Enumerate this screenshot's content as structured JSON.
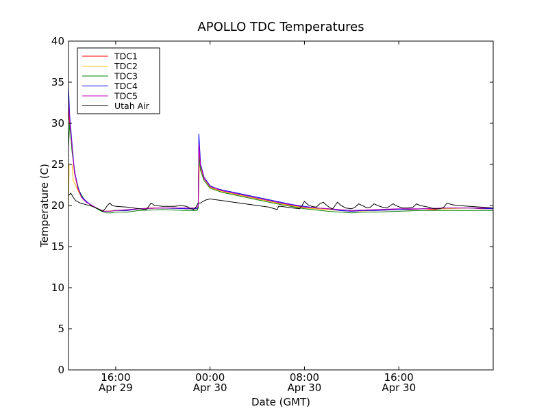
{
  "chart_data": {
    "type": "line",
    "title": "APOLLO TDC Temperatures",
    "xlabel": "Date (GMT)",
    "ylabel": "Temperature (C)",
    "ylim": [
      0,
      40
    ],
    "xlim_hours": [
      12.0,
      48.0
    ],
    "x_unit": "hours since Apr 29 00:00 GMT",
    "y_ticks": [
      {
        "value": 0,
        "label": "0"
      },
      {
        "value": 5,
        "label": "5"
      },
      {
        "value": 10,
        "label": "10"
      },
      {
        "value": 15,
        "label": "15"
      },
      {
        "value": 20,
        "label": "20"
      },
      {
        "value": 25,
        "label": "25"
      },
      {
        "value": 30,
        "label": "30"
      },
      {
        "value": 35,
        "label": "35"
      },
      {
        "value": 40,
        "label": "40"
      }
    ],
    "x_ticks": [
      {
        "value": 16,
        "time": "16:00",
        "date": "Apr 29"
      },
      {
        "value": 24,
        "time": "00:00",
        "date": "Apr 30"
      },
      {
        "value": 32,
        "time": "08:00",
        "date": "Apr 30"
      },
      {
        "value": 40,
        "time": "16:00",
        "date": "Apr 30"
      }
    ],
    "legend_position": "top-left",
    "series": [
      {
        "name": "TDC1",
        "color": "#ff0000",
        "points": [
          [
            12.0,
            32.0
          ],
          [
            12.1,
            30.0
          ],
          [
            12.3,
            27.0
          ],
          [
            12.5,
            24.0
          ],
          [
            12.8,
            22.0
          ],
          [
            13.1,
            21.0
          ],
          [
            13.5,
            20.4
          ],
          [
            14.0,
            20.0
          ],
          [
            14.5,
            19.6
          ],
          [
            15.0,
            19.3
          ],
          [
            15.5,
            19.3
          ],
          [
            16.0,
            19.4
          ],
          [
            17.0,
            19.4
          ],
          [
            18.0,
            19.6
          ],
          [
            19.0,
            19.7
          ],
          [
            20.0,
            19.7
          ],
          [
            21.0,
            19.7
          ],
          [
            22.0,
            19.6
          ],
          [
            22.9,
            19.6
          ],
          [
            23.0,
            20.0
          ],
          [
            23.05,
            27.0
          ],
          [
            23.2,
            24.6
          ],
          [
            23.5,
            23.2
          ],
          [
            24.0,
            22.3
          ],
          [
            24.5,
            22.0
          ],
          [
            25.0,
            21.8
          ],
          [
            26.0,
            21.5
          ],
          [
            27.0,
            21.2
          ],
          [
            28.0,
            20.9
          ],
          [
            29.0,
            20.6
          ],
          [
            30.0,
            20.3
          ],
          [
            31.0,
            20.0
          ],
          [
            32.0,
            19.8
          ],
          [
            33.0,
            19.7
          ],
          [
            34.0,
            19.6
          ],
          [
            35.0,
            19.4
          ],
          [
            36.0,
            19.3
          ],
          [
            37.0,
            19.4
          ],
          [
            38.0,
            19.4
          ],
          [
            39.0,
            19.5
          ],
          [
            40.0,
            19.5
          ],
          [
            41.0,
            19.5
          ],
          [
            42.0,
            19.6
          ],
          [
            43.0,
            19.5
          ],
          [
            44.0,
            19.7
          ],
          [
            45.0,
            19.7
          ],
          [
            46.0,
            19.7
          ],
          [
            47.0,
            19.6
          ],
          [
            48.0,
            19.6
          ]
        ]
      },
      {
        "name": "TDC2",
        "color": "#ffbb00",
        "points": [
          [
            12.0,
            19.0
          ],
          [
            12.05,
            25.0
          ],
          [
            12.3,
            25.0
          ],
          [
            12.4,
            23.0
          ],
          [
            12.6,
            22.5
          ],
          [
            12.8,
            21.8
          ],
          [
            13.1,
            21.0
          ],
          [
            13.5,
            20.4
          ],
          [
            14.0,
            20.0
          ],
          [
            14.5,
            19.6
          ],
          [
            15.0,
            19.3
          ],
          [
            16.0,
            19.4
          ],
          [
            17.0,
            19.4
          ],
          [
            18.0,
            19.6
          ],
          [
            20.0,
            19.7
          ],
          [
            22.0,
            19.6
          ],
          [
            22.9,
            19.6
          ],
          [
            23.0,
            19.8
          ],
          [
            23.1,
            25.0
          ],
          [
            23.3,
            24.2
          ],
          [
            23.6,
            23.0
          ],
          [
            24.0,
            22.2
          ],
          [
            25.0,
            21.7
          ],
          [
            26.0,
            21.4
          ],
          [
            28.0,
            20.8
          ],
          [
            30.0,
            20.2
          ],
          [
            32.0,
            19.7
          ],
          [
            34.0,
            19.5
          ],
          [
            36.0,
            19.3
          ],
          [
            38.0,
            19.4
          ],
          [
            40.0,
            19.5
          ],
          [
            42.0,
            19.6
          ],
          [
            44.0,
            19.6
          ],
          [
            46.0,
            19.7
          ],
          [
            48.0,
            19.6
          ]
        ]
      },
      {
        "name": "TDC3",
        "color": "#008000",
        "points": [
          [
            12.0,
            27.0
          ],
          [
            12.1,
            30.0
          ],
          [
            12.3,
            26.5
          ],
          [
            12.6,
            23.5
          ],
          [
            12.9,
            21.8
          ],
          [
            13.3,
            20.8
          ],
          [
            13.8,
            20.1
          ],
          [
            14.3,
            19.7
          ],
          [
            14.8,
            19.3
          ],
          [
            15.2,
            19.1
          ],
          [
            15.6,
            19.1
          ],
          [
            16.0,
            19.2
          ],
          [
            17.0,
            19.2
          ],
          [
            18.0,
            19.4
          ],
          [
            20.0,
            19.5
          ],
          [
            22.0,
            19.4
          ],
          [
            22.9,
            19.4
          ],
          [
            23.0,
            19.7
          ],
          [
            23.05,
            26.0
          ],
          [
            23.2,
            24.2
          ],
          [
            23.5,
            23.0
          ],
          [
            24.0,
            22.1
          ],
          [
            25.0,
            21.6
          ],
          [
            26.0,
            21.3
          ],
          [
            28.0,
            20.7
          ],
          [
            30.0,
            20.1
          ],
          [
            32.0,
            19.6
          ],
          [
            34.0,
            19.3
          ],
          [
            35.0,
            19.2
          ],
          [
            36.0,
            19.1
          ],
          [
            37.0,
            19.2
          ],
          [
            38.0,
            19.2
          ],
          [
            40.0,
            19.3
          ],
          [
            42.0,
            19.4
          ],
          [
            44.0,
            19.4
          ],
          [
            46.0,
            19.4
          ],
          [
            48.0,
            19.4
          ]
        ]
      },
      {
        "name": "TDC4",
        "color": "#0000ff",
        "points": [
          [
            12.0,
            34.5
          ],
          [
            12.1,
            31.0
          ],
          [
            12.3,
            27.5
          ],
          [
            12.5,
            24.3
          ],
          [
            12.8,
            22.2
          ],
          [
            13.1,
            21.1
          ],
          [
            13.5,
            20.5
          ],
          [
            14.0,
            20.0
          ],
          [
            14.5,
            19.6
          ],
          [
            15.0,
            19.3
          ],
          [
            15.5,
            19.3
          ],
          [
            16.0,
            19.4
          ],
          [
            17.0,
            19.4
          ],
          [
            18.0,
            19.6
          ],
          [
            20.0,
            19.7
          ],
          [
            22.0,
            19.6
          ],
          [
            22.9,
            19.6
          ],
          [
            23.0,
            20.0
          ],
          [
            23.05,
            28.7
          ],
          [
            23.2,
            25.0
          ],
          [
            23.5,
            23.4
          ],
          [
            24.0,
            22.4
          ],
          [
            24.5,
            22.1
          ],
          [
            25.0,
            21.9
          ],
          [
            26.0,
            21.6
          ],
          [
            27.0,
            21.3
          ],
          [
            28.0,
            21.0
          ],
          [
            29.0,
            20.7
          ],
          [
            30.0,
            20.4
          ],
          [
            31.0,
            20.1
          ],
          [
            32.0,
            19.9
          ],
          [
            33.0,
            19.7
          ],
          [
            34.0,
            19.6
          ],
          [
            35.0,
            19.4
          ],
          [
            36.0,
            19.3
          ],
          [
            37.0,
            19.4
          ],
          [
            38.0,
            19.4
          ],
          [
            40.0,
            19.5
          ],
          [
            42.0,
            19.6
          ],
          [
            44.0,
            19.7
          ],
          [
            46.0,
            19.7
          ],
          [
            48.0,
            19.6
          ]
        ]
      },
      {
        "name": "TDC5",
        "color": "#bf00bf",
        "points": [
          [
            12.0,
            33.0
          ],
          [
            12.1,
            30.5
          ],
          [
            12.3,
            27.2
          ],
          [
            12.5,
            24.1
          ],
          [
            12.8,
            22.1
          ],
          [
            13.1,
            21.0
          ],
          [
            13.5,
            20.4
          ],
          [
            14.0,
            20.0
          ],
          [
            14.5,
            19.6
          ],
          [
            15.0,
            19.3
          ],
          [
            15.5,
            19.3
          ],
          [
            16.0,
            19.4
          ],
          [
            17.0,
            19.5
          ],
          [
            18.0,
            19.6
          ],
          [
            20.0,
            19.7
          ],
          [
            22.0,
            19.7
          ],
          [
            22.9,
            19.7
          ],
          [
            23.0,
            20.0
          ],
          [
            23.05,
            27.5
          ],
          [
            23.2,
            24.8
          ],
          [
            23.5,
            23.3
          ],
          [
            24.0,
            22.3
          ],
          [
            25.0,
            21.8
          ],
          [
            26.0,
            21.5
          ],
          [
            28.0,
            20.9
          ],
          [
            30.0,
            20.3
          ],
          [
            32.0,
            19.8
          ],
          [
            34.0,
            19.6
          ],
          [
            36.0,
            19.4
          ],
          [
            38.0,
            19.5
          ],
          [
            40.0,
            19.6
          ],
          [
            42.0,
            19.6
          ],
          [
            44.0,
            19.7
          ],
          [
            46.0,
            19.7
          ],
          [
            48.0,
            19.7
          ]
        ]
      },
      {
        "name": "Utah Air",
        "color": "#000000",
        "points": [
          [
            12.0,
            21.2
          ],
          [
            12.2,
            21.5
          ],
          [
            12.4,
            21.0
          ],
          [
            12.6,
            20.6
          ],
          [
            13.0,
            20.3
          ],
          [
            13.5,
            20.1
          ],
          [
            14.0,
            19.9
          ],
          [
            14.5,
            19.6
          ],
          [
            14.9,
            19.3
          ],
          [
            15.1,
            19.6
          ],
          [
            15.3,
            20.0
          ],
          [
            15.5,
            20.3
          ],
          [
            15.7,
            20.0
          ],
          [
            16.0,
            19.9
          ],
          [
            17.0,
            19.8
          ],
          [
            18.0,
            19.6
          ],
          [
            18.6,
            19.5
          ],
          [
            18.8,
            19.9
          ],
          [
            19.0,
            20.3
          ],
          [
            19.3,
            20.0
          ],
          [
            20.0,
            19.9
          ],
          [
            21.0,
            19.9
          ],
          [
            21.5,
            20.0
          ],
          [
            22.0,
            19.9
          ],
          [
            22.4,
            19.6
          ],
          [
            22.6,
            19.5
          ],
          [
            22.8,
            19.8
          ],
          [
            23.0,
            20.3
          ],
          [
            23.2,
            20.3
          ],
          [
            23.4,
            20.5
          ],
          [
            23.7,
            20.7
          ],
          [
            24.0,
            20.8
          ],
          [
            24.5,
            20.7
          ],
          [
            25.0,
            20.6
          ],
          [
            26.0,
            20.4
          ],
          [
            27.0,
            20.2
          ],
          [
            28.0,
            20.0
          ],
          [
            29.0,
            19.8
          ],
          [
            29.7,
            19.5
          ],
          [
            29.8,
            19.9
          ],
          [
            30.0,
            19.9
          ],
          [
            31.0,
            19.7
          ],
          [
            31.6,
            19.6
          ],
          [
            31.8,
            20.0
          ],
          [
            32.0,
            20.5
          ],
          [
            32.3,
            20.1
          ],
          [
            32.6,
            19.9
          ],
          [
            33.0,
            19.8
          ],
          [
            33.3,
            20.2
          ],
          [
            33.6,
            20.4
          ],
          [
            33.9,
            20.0
          ],
          [
            34.2,
            19.7
          ],
          [
            34.4,
            19.6
          ],
          [
            34.6,
            20.0
          ],
          [
            34.8,
            20.4
          ],
          [
            35.1,
            20.0
          ],
          [
            35.5,
            19.7
          ],
          [
            36.0,
            19.6
          ],
          [
            36.3,
            19.8
          ],
          [
            36.6,
            20.2
          ],
          [
            36.9,
            20.0
          ],
          [
            37.3,
            19.7
          ],
          [
            37.6,
            19.8
          ],
          [
            37.9,
            20.2
          ],
          [
            38.2,
            20.0
          ],
          [
            38.6,
            19.8
          ],
          [
            39.0,
            19.7
          ],
          [
            39.3,
            20.0
          ],
          [
            39.5,
            20.2
          ],
          [
            39.9,
            19.9
          ],
          [
            40.3,
            19.7
          ],
          [
            40.8,
            19.7
          ],
          [
            41.2,
            19.8
          ],
          [
            41.5,
            20.2
          ],
          [
            41.8,
            20.0
          ],
          [
            42.5,
            19.8
          ],
          [
            43.0,
            19.6
          ],
          [
            43.5,
            19.6
          ],
          [
            43.8,
            19.8
          ],
          [
            44.1,
            20.3
          ],
          [
            44.5,
            20.1
          ],
          [
            45.0,
            20.0
          ],
          [
            46.0,
            19.9
          ],
          [
            47.0,
            19.8
          ],
          [
            48.0,
            19.7
          ]
        ]
      }
    ]
  }
}
